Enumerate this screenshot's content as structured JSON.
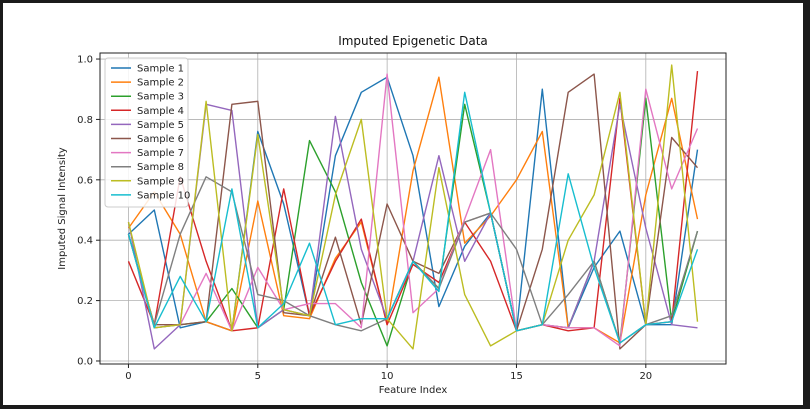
{
  "chart_data": {
    "type": "line",
    "title": "Imputed Epigenetic Data",
    "xlabel": "Feature Index",
    "ylabel": "Imputed Signal Intensity",
    "xlim": [
      -1.1,
      23.1
    ],
    "ylim": [
      -0.01,
      1.02
    ],
    "xticks": [
      0,
      5,
      10,
      15,
      20
    ],
    "yticks": [
      0.0,
      0.2,
      0.4,
      0.6,
      0.8,
      1.0
    ],
    "xtick_labels": [
      "0",
      "5",
      "10",
      "15",
      "20"
    ],
    "ytick_labels": [
      "0.0",
      "0.2",
      "0.4",
      "0.6",
      "0.8",
      "1.0"
    ],
    "grid": true,
    "legend_position": "top-left",
    "x": [
      0,
      1,
      2,
      3,
      4,
      5,
      6,
      7,
      8,
      9,
      10,
      11,
      12,
      13,
      14,
      15,
      16,
      17,
      18,
      19,
      20,
      21,
      22
    ],
    "series": [
      {
        "name": "Sample 1",
        "color": "#1f77b4",
        "values": [
          0.42,
          0.5,
          0.11,
          0.13,
          0.1,
          0.76,
          0.52,
          0.15,
          0.68,
          0.89,
          0.94,
          0.68,
          0.18,
          0.38,
          0.49,
          0.1,
          0.9,
          0.11,
          0.31,
          0.43,
          0.12,
          0.12,
          0.7
        ]
      },
      {
        "name": "Sample 2",
        "color": "#ff7f0e",
        "values": [
          0.44,
          0.56,
          0.42,
          0.13,
          0.1,
          0.53,
          0.15,
          0.14,
          0.34,
          0.46,
          0.12,
          0.63,
          0.94,
          0.39,
          0.48,
          0.6,
          0.76,
          0.11,
          0.11,
          0.06,
          0.55,
          0.87,
          0.47
        ]
      },
      {
        "name": "Sample 3",
        "color": "#2ca02c",
        "values": [
          0.42,
          0.11,
          0.12,
          0.13,
          0.24,
          0.11,
          0.17,
          0.73,
          0.56,
          0.26,
          0.05,
          0.33,
          0.24,
          0.85,
          0.49,
          0.1,
          0.12,
          0.11,
          0.33,
          0.06,
          0.87,
          0.13,
          0.43
        ]
      },
      {
        "name": "Sample 4",
        "color": "#d62728",
        "values": [
          0.33,
          0.12,
          0.61,
          0.33,
          0.1,
          0.11,
          0.57,
          0.15,
          0.33,
          0.47,
          0.12,
          0.32,
          0.26,
          0.46,
          0.33,
          0.1,
          0.12,
          0.1,
          0.11,
          0.87,
          0.12,
          0.13,
          0.96
        ]
      },
      {
        "name": "Sample 5",
        "color": "#9467bd",
        "values": [
          0.46,
          0.04,
          0.12,
          0.85,
          0.83,
          0.11,
          0.17,
          0.15,
          0.81,
          0.37,
          0.14,
          0.33,
          0.68,
          0.33,
          0.49,
          0.1,
          0.12,
          0.11,
          0.33,
          0.85,
          0.44,
          0.12,
          0.11
        ]
      },
      {
        "name": "Sample 6",
        "color": "#8c564b",
        "values": [
          0.42,
          0.12,
          0.12,
          0.13,
          0.85,
          0.86,
          0.16,
          0.15,
          0.41,
          0.12,
          0.52,
          0.33,
          0.29,
          0.46,
          0.49,
          0.1,
          0.37,
          0.89,
          0.95,
          0.04,
          0.12,
          0.74,
          0.64
        ]
      },
      {
        "name": "Sample 7",
        "color": "#e377c2",
        "values": [
          0.42,
          0.11,
          0.12,
          0.29,
          0.1,
          0.31,
          0.17,
          0.19,
          0.19,
          0.11,
          0.95,
          0.16,
          0.24,
          0.47,
          0.7,
          0.1,
          0.12,
          0.11,
          0.11,
          0.05,
          0.9,
          0.57,
          0.77
        ]
      },
      {
        "name": "Sample 8",
        "color": "#7f7f7f",
        "values": [
          0.42,
          0.12,
          0.42,
          0.61,
          0.56,
          0.22,
          0.2,
          0.15,
          0.12,
          0.1,
          0.14,
          0.33,
          0.24,
          0.46,
          0.49,
          0.37,
          0.12,
          0.22,
          0.33,
          0.06,
          0.12,
          0.15,
          0.43
        ]
      },
      {
        "name": "Sample 9",
        "color": "#bcbd22",
        "values": [
          0.46,
          0.11,
          0.12,
          0.86,
          0.1,
          0.75,
          0.17,
          0.15,
          0.55,
          0.8,
          0.14,
          0.04,
          0.64,
          0.22,
          0.05,
          0.1,
          0.12,
          0.4,
          0.55,
          0.89,
          0.12,
          0.98,
          0.13
        ]
      },
      {
        "name": "Sample 10",
        "color": "#17becf",
        "values": [
          0.42,
          0.11,
          0.28,
          0.13,
          0.57,
          0.11,
          0.19,
          0.39,
          0.12,
          0.14,
          0.14,
          0.33,
          0.23,
          0.89,
          0.49,
          0.1,
          0.12,
          0.62,
          0.31,
          0.06,
          0.12,
          0.13,
          0.37
        ]
      }
    ]
  }
}
